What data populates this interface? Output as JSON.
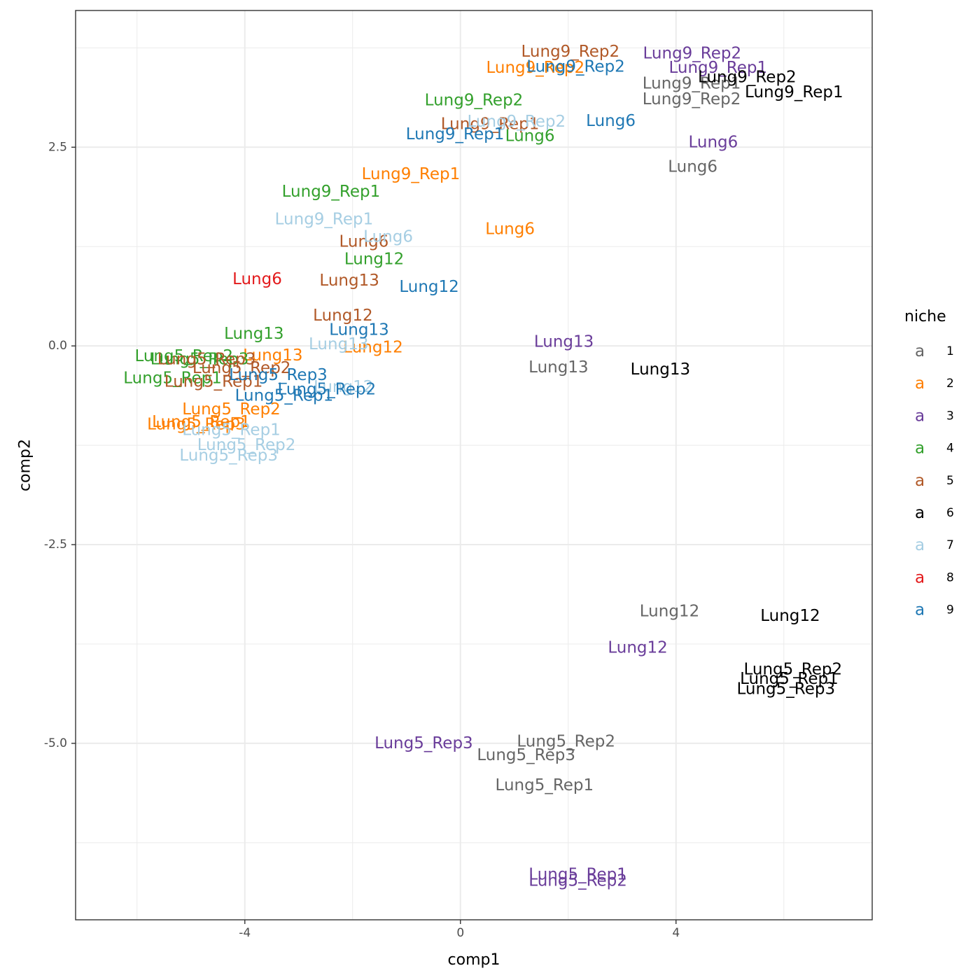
{
  "chart_data": {
    "type": "scatter",
    "title": "",
    "xlabel": "comp1",
    "ylabel": "comp2",
    "xlim": [
      -7.14,
      7.64
    ],
    "ylim": [
      -7.22,
      4.22
    ],
    "x_ticks": [
      -4,
      0,
      4
    ],
    "x_tick_labels": [
      "-4",
      "0",
      "4"
    ],
    "y_ticks": [
      2.5,
      0.0,
      -2.5,
      -5.0
    ],
    "y_tick_labels": [
      "2.5",
      "0.0",
      "-2.5",
      "-5.0"
    ],
    "x_minor_grid": [
      -6,
      -2,
      2,
      6
    ],
    "y_minor_grid": [
      3.75,
      1.25,
      -1.25,
      -3.75,
      -6.25
    ],
    "grid": true,
    "marker": "text-label",
    "legend": {
      "title": "niche",
      "placement": "right",
      "key_glyph": "a",
      "entries": [
        {
          "label": "1",
          "color": "#666666"
        },
        {
          "label": "2",
          "color": "#FF7F00"
        },
        {
          "label": "3",
          "color": "#6A3D9A"
        },
        {
          "label": "4",
          "color": "#33A02C"
        },
        {
          "label": "5",
          "color": "#B15928"
        },
        {
          "label": "6",
          "color": "#000000"
        },
        {
          "label": "7",
          "color": "#A6CEE3"
        },
        {
          "label": "8",
          "color": "#E31A1C"
        },
        {
          "label": "9",
          "color": "#1F78B4"
        }
      ]
    },
    "series": [
      {
        "name": "1",
        "color": "#666666",
        "points": [
          {
            "label": "Lung9_Rep1",
            "x": 4.29,
            "y": 3.3
          },
          {
            "label": "Lung9_Rep2",
            "x": 4.29,
            "y": 3.1
          },
          {
            "label": "Lung6",
            "x": 4.31,
            "y": 2.25
          },
          {
            "label": "Lung13",
            "x": 1.82,
            "y": -0.27
          },
          {
            "label": "Lung12",
            "x": 3.88,
            "y": -3.34
          },
          {
            "label": "Lung5_Rep2",
            "x": 1.96,
            "y": -4.98
          },
          {
            "label": "Lung5_Rep3",
            "x": 1.22,
            "y": -5.15
          },
          {
            "label": "Lung5_Rep1",
            "x": 1.56,
            "y": -5.53
          }
        ]
      },
      {
        "name": "2",
        "color": "#FF7F00",
        "points": [
          {
            "label": "Lung9_Rep2",
            "x": 1.39,
            "y": 3.5
          },
          {
            "label": "Lung9_Rep1",
            "x": -0.92,
            "y": 2.16
          },
          {
            "label": "Lung6",
            "x": 0.92,
            "y": 1.47
          },
          {
            "label": "Lung13",
            "x": -3.48,
            "y": -0.12
          },
          {
            "label": "Lung12",
            "x": -1.62,
            "y": -0.02
          },
          {
            "label": "Lung5_Rep2",
            "x": -4.25,
            "y": -0.8
          },
          {
            "label": "Lung5_Rep1",
            "x": -4.81,
            "y": -0.96
          },
          {
            "label": "Lung5_Rep3",
            "x": -4.9,
            "y": -0.99
          }
        ]
      },
      {
        "name": "3",
        "color": "#6A3D9A",
        "points": [
          {
            "label": "Lung9_Rep2",
            "x": 4.3,
            "y": 3.68
          },
          {
            "label": "Lung9_Rep1",
            "x": 4.78,
            "y": 3.5
          },
          {
            "label": "Lung6",
            "x": 4.69,
            "y": 2.56
          },
          {
            "label": "Lung13",
            "x": 1.92,
            "y": 0.05
          },
          {
            "label": "Lung12",
            "x": 3.29,
            "y": -3.8
          },
          {
            "label": "Lung5_Rep3",
            "x": -0.68,
            "y": -5.0
          },
          {
            "label": "Lung5_Rep1",
            "x": 2.18,
            "y": -6.65
          },
          {
            "label": "Lung5_Rep2",
            "x": 2.18,
            "y": -6.73
          }
        ]
      },
      {
        "name": "4",
        "color": "#33A02C",
        "points": [
          {
            "label": "Lung9_Rep2",
            "x": 0.25,
            "y": 3.09
          },
          {
            "label": "Lung6",
            "x": 1.29,
            "y": 2.64
          },
          {
            "label": "Lung9_Rep1",
            "x": -2.4,
            "y": 1.94
          },
          {
            "label": "Lung12",
            "x": -1.6,
            "y": 1.09
          },
          {
            "label": "Lung13",
            "x": -3.83,
            "y": 0.15
          },
          {
            "label": "Lung5_Rep2",
            "x": -5.13,
            "y": -0.13
          },
          {
            "label": "Lung5_Rep3",
            "x": -4.84,
            "y": -0.17
          },
          {
            "label": "Lung5_Rep1",
            "x": -5.34,
            "y": -0.41
          }
        ]
      },
      {
        "name": "5",
        "color": "#B15928",
        "points": [
          {
            "label": "Lung9_Rep2",
            "x": 2.04,
            "y": 3.7
          },
          {
            "label": "Lung9_Rep1",
            "x": 0.55,
            "y": 2.79
          },
          {
            "label": "Lung6",
            "x": -1.79,
            "y": 1.31
          },
          {
            "label": "Lung13",
            "x": -2.06,
            "y": 0.82
          },
          {
            "label": "Lung12",
            "x": -2.18,
            "y": 0.38
          },
          {
            "label": "Lung5_Rep3",
            "x": -4.71,
            "y": -0.17
          },
          {
            "label": "Lung5_Rep2",
            "x": -4.06,
            "y": -0.28
          },
          {
            "label": "Lung5_Rep1",
            "x": -4.58,
            "y": -0.45
          }
        ]
      },
      {
        "name": "6",
        "color": "#000000",
        "points": [
          {
            "label": "Lung9_Rep2",
            "x": 5.32,
            "y": 3.38
          },
          {
            "label": "Lung9_Rep1",
            "x": 6.19,
            "y": 3.19
          },
          {
            "label": "Lung13",
            "x": 3.71,
            "y": -0.3
          },
          {
            "label": "Lung12",
            "x": 6.12,
            "y": -3.4
          },
          {
            "label": "Lung5_Rep2",
            "x": 6.17,
            "y": -4.07
          },
          {
            "label": "Lung5_Rep1",
            "x": 6.1,
            "y": -4.19
          },
          {
            "label": "Lung5_Rep3",
            "x": 6.04,
            "y": -4.32
          }
        ]
      },
      {
        "name": "7",
        "color": "#A6CEE3",
        "points": [
          {
            "label": "Lung9_Rep2",
            "x": 1.04,
            "y": 2.82
          },
          {
            "label": "Lung9_Rep1",
            "x": -2.53,
            "y": 1.59
          },
          {
            "label": "Lung6",
            "x": -1.34,
            "y": 1.37
          },
          {
            "label": "Lung13",
            "x": -2.26,
            "y": 0.02
          },
          {
            "label": "Lung12",
            "x": -2.17,
            "y": -0.52
          },
          {
            "label": "Lung5_Rep1",
            "x": -4.25,
            "y": -1.06
          },
          {
            "label": "Lung5_Rep2",
            "x": -3.97,
            "y": -1.25
          },
          {
            "label": "Lung5_Rep3",
            "x": -4.3,
            "y": -1.38
          }
        ]
      },
      {
        "name": "8",
        "color": "#E31A1C",
        "points": [
          {
            "label": "Lung6",
            "x": -3.77,
            "y": 0.84
          }
        ]
      },
      {
        "name": "9",
        "color": "#1F78B4",
        "points": [
          {
            "label": "Lung9_Rep2",
            "x": 2.14,
            "y": 3.51
          },
          {
            "label": "Lung6",
            "x": 2.79,
            "y": 2.83
          },
          {
            "label": "Lung9_Rep1",
            "x": -0.1,
            "y": 2.66
          },
          {
            "label": "Lung12",
            "x": -0.58,
            "y": 0.74
          },
          {
            "label": "Lung13",
            "x": -1.88,
            "y": 0.2
          },
          {
            "label": "Lung5_Rep3",
            "x": -3.38,
            "y": -0.37
          },
          {
            "label": "Lung5_Rep2",
            "x": -2.48,
            "y": -0.55
          },
          {
            "label": "Lung5_Rep1",
            "x": -3.27,
            "y": -0.63
          }
        ]
      }
    ]
  }
}
